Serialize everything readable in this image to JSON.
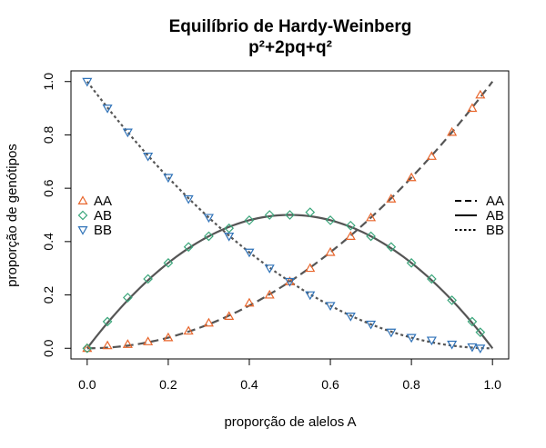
{
  "chart_data": {
    "type": "scatter",
    "title": "Equilíbrio de Hardy-Weinberg",
    "subtitle": "p²+2pq+q²",
    "xlabel": "proporção de alelos A",
    "ylabel": "proporção de genótipos",
    "xlim": [
      -0.04,
      1.04
    ],
    "ylim": [
      -0.04,
      1.04
    ],
    "x_ticks": [
      "0.0",
      "0.2",
      "0.4",
      "0.6",
      "0.8",
      "1.0"
    ],
    "y_ticks": [
      "0.0",
      "0.2",
      "0.4",
      "0.6",
      "0.8",
      "1.0"
    ],
    "grid": false,
    "colors": {
      "AA": "#e8652b",
      "AB": "#3aa57a",
      "BB": "#2f72b8",
      "theory": "#555555"
    },
    "series": [
      {
        "name": "AA",
        "marker": "triangle-up",
        "x": [
          0.0,
          0.05,
          0.1,
          0.15,
          0.2,
          0.25,
          0.3,
          0.35,
          0.4,
          0.45,
          0.5,
          0.55,
          0.6,
          0.65,
          0.7,
          0.75,
          0.8,
          0.85,
          0.9,
          0.95,
          0.97
        ],
        "y": [
          0.0,
          0.01,
          0.015,
          0.025,
          0.04,
          0.065,
          0.095,
          0.12,
          0.17,
          0.2,
          0.25,
          0.3,
          0.36,
          0.42,
          0.49,
          0.56,
          0.64,
          0.72,
          0.81,
          0.9,
          0.95
        ]
      },
      {
        "name": "AB",
        "marker": "diamond",
        "x": [
          0.0,
          0.05,
          0.1,
          0.15,
          0.2,
          0.25,
          0.3,
          0.35,
          0.4,
          0.45,
          0.5,
          0.55,
          0.6,
          0.65,
          0.7,
          0.75,
          0.8,
          0.85,
          0.9,
          0.95,
          0.97
        ],
        "y": [
          0.0,
          0.1,
          0.19,
          0.26,
          0.32,
          0.38,
          0.42,
          0.45,
          0.48,
          0.5,
          0.5,
          0.51,
          0.48,
          0.46,
          0.42,
          0.38,
          0.32,
          0.26,
          0.18,
          0.1,
          0.06
        ]
      },
      {
        "name": "BB",
        "marker": "triangle-down",
        "x": [
          0.0,
          0.05,
          0.1,
          0.15,
          0.2,
          0.25,
          0.3,
          0.35,
          0.4,
          0.45,
          0.5,
          0.55,
          0.6,
          0.65,
          0.7,
          0.75,
          0.8,
          0.85,
          0.9,
          0.95,
          0.97
        ],
        "y": [
          1.0,
          0.9,
          0.81,
          0.72,
          0.64,
          0.56,
          0.49,
          0.42,
          0.36,
          0.3,
          0.25,
          0.2,
          0.16,
          0.12,
          0.09,
          0.06,
          0.04,
          0.03,
          0.015,
          0.005,
          0.0
        ]
      }
    ],
    "theory_lines": [
      {
        "name": "AA",
        "style": "dashed",
        "formula": "p^2"
      },
      {
        "name": "AB",
        "style": "solid",
        "formula": "2pq"
      },
      {
        "name": "BB",
        "style": "dotted",
        "formula": "q^2"
      }
    ],
    "legend_left": [
      "AA",
      "AB",
      "BB"
    ],
    "legend_right": [
      "AA",
      "AB",
      "BB"
    ]
  }
}
